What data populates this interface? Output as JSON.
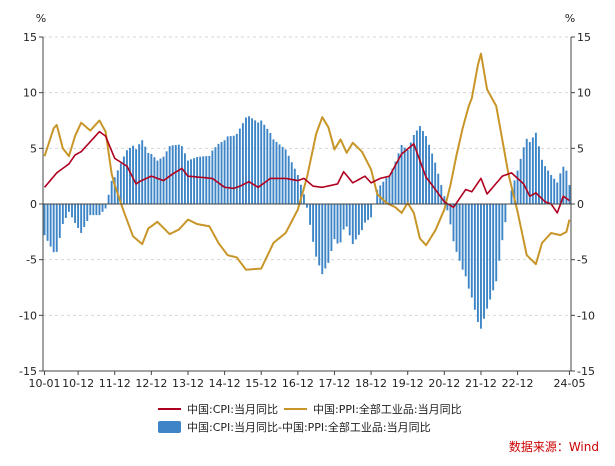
{
  "chart_data": {
    "type": "bar+line",
    "title": "",
    "xlabel": "",
    "ylabel_left": "%",
    "ylabel_right": "%",
    "ylim": [
      -15,
      15
    ],
    "y_ticks": [
      15,
      10,
      5,
      0,
      -5,
      -10,
      -15
    ],
    "x_tick_labels": [
      "10-01",
      "10-12",
      "11-12",
      "12-12",
      "13-12",
      "14-12",
      "15-12",
      "16-12",
      "17-12",
      "18-12",
      "19-12",
      "20-12",
      "21-12",
      "22-12",
      "24-05"
    ],
    "x_tick_months": [
      0,
      11,
      23,
      35,
      47,
      59,
      71,
      83,
      95,
      107,
      119,
      131,
      143,
      155,
      172
    ],
    "n_months": 173,
    "legend": [
      {
        "key": "cpi",
        "label": "中国:CPI:当月同比",
        "color": "#b0001f",
        "kind": "line"
      },
      {
        "key": "ppi",
        "label": "中国:PPI:全部工业品:当月同比",
        "color": "#c89628",
        "kind": "line"
      },
      {
        "key": "diff",
        "label": "中国:CPI:当月同比-中国:PPI:全部工业品:当月同比",
        "color": "#3d85c6",
        "kind": "bar"
      }
    ],
    "cpi_keypoints": [
      [
        0,
        1.5
      ],
      [
        4,
        2.8
      ],
      [
        8,
        3.6
      ],
      [
        10,
        4.4
      ],
      [
        12,
        4.7
      ],
      [
        18,
        6.5
      ],
      [
        20,
        6.1
      ],
      [
        23,
        4.1
      ],
      [
        27,
        3.4
      ],
      [
        30,
        1.8
      ],
      [
        31,
        2.0
      ],
      [
        35,
        2.5
      ],
      [
        39,
        2.1
      ],
      [
        42,
        2.7
      ],
      [
        45,
        3.2
      ],
      [
        47,
        2.5
      ],
      [
        51,
        2.4
      ],
      [
        55,
        2.3
      ],
      [
        59,
        1.5
      ],
      [
        62,
        1.4
      ],
      [
        64,
        1.6
      ],
      [
        67,
        2.0
      ],
      [
        70,
        1.5
      ],
      [
        74,
        2.3
      ],
      [
        79,
        2.3
      ],
      [
        83,
        2.1
      ],
      [
        85,
        2.3
      ],
      [
        88,
        1.6
      ],
      [
        91,
        1.5
      ],
      [
        96,
        1.8
      ],
      [
        98,
        2.9
      ],
      [
        101,
        1.9
      ],
      [
        105,
        2.5
      ],
      [
        107,
        1.9
      ],
      [
        110,
        2.3
      ],
      [
        113,
        2.5
      ],
      [
        117,
        4.5
      ],
      [
        121,
        5.4
      ],
      [
        125,
        2.4
      ],
      [
        127,
        1.7
      ],
      [
        131,
        0.2
      ],
      [
        134,
        -0.3
      ],
      [
        138,
        1.3
      ],
      [
        140,
        1.1
      ],
      [
        143,
        2.3
      ],
      [
        145,
        0.9
      ],
      [
        150,
        2.5
      ],
      [
        153,
        2.8
      ],
      [
        157,
        1.8
      ],
      [
        159,
        0.7
      ],
      [
        161,
        1.0
      ],
      [
        164,
        0.2
      ],
      [
        166,
        0.0
      ],
      [
        168,
        -0.8
      ],
      [
        170,
        0.7
      ],
      [
        172,
        0.3
      ]
    ],
    "ppi_keypoints": [
      [
        0,
        4.3
      ],
      [
        3,
        6.8
      ],
      [
        4,
        7.1
      ],
      [
        6,
        5.0
      ],
      [
        8,
        4.3
      ],
      [
        10,
        6.1
      ],
      [
        12,
        7.3
      ],
      [
        15,
        6.6
      ],
      [
        18,
        7.5
      ],
      [
        20,
        6.5
      ],
      [
        22,
        2.7
      ],
      [
        23,
        1.7
      ],
      [
        26,
        -0.7
      ],
      [
        29,
        -2.9
      ],
      [
        32,
        -3.6
      ],
      [
        34,
        -2.2
      ],
      [
        37,
        -1.6
      ],
      [
        41,
        -2.7
      ],
      [
        44,
        -2.3
      ],
      [
        47,
        -1.4
      ],
      [
        50,
        -1.8
      ],
      [
        54,
        -2.0
      ],
      [
        57,
        -3.5
      ],
      [
        60,
        -4.6
      ],
      [
        63,
        -4.8
      ],
      [
        66,
        -5.9
      ],
      [
        71,
        -5.8
      ],
      [
        75,
        -3.5
      ],
      [
        79,
        -2.6
      ],
      [
        83,
        -0.5
      ],
      [
        86,
        2.4
      ],
      [
        89,
        6.3
      ],
      [
        91,
        7.8
      ],
      [
        93,
        6.9
      ],
      [
        95,
        4.9
      ],
      [
        97,
        5.8
      ],
      [
        99,
        4.6
      ],
      [
        101,
        5.5
      ],
      [
        104,
        4.7
      ],
      [
        107,
        3.1
      ],
      [
        109,
        0.9
      ],
      [
        112,
        0.1
      ],
      [
        115,
        -0.3
      ],
      [
        117,
        -0.8
      ],
      [
        119,
        0.1
      ],
      [
        121,
        -0.8
      ],
      [
        123,
        -3.1
      ],
      [
        125,
        -3.7
      ],
      [
        128,
        -2.4
      ],
      [
        131,
        -0.5
      ],
      [
        133,
        1.7
      ],
      [
        135,
        4.4
      ],
      [
        137,
        6.8
      ],
      [
        139,
        8.8
      ],
      [
        140,
        9.5
      ],
      [
        142,
        12.5
      ],
      [
        143,
        13.5
      ],
      [
        145,
        10.3
      ],
      [
        148,
        8.8
      ],
      [
        152,
        2.7
      ],
      [
        155,
        -0.7
      ],
      [
        158,
        -4.6
      ],
      [
        161,
        -5.4
      ],
      [
        163,
        -3.5
      ],
      [
        166,
        -2.6
      ],
      [
        169,
        -2.8
      ],
      [
        171,
        -2.5
      ],
      [
        172,
        -1.4
      ]
    ]
  },
  "source_text": "数据来源：Wind"
}
